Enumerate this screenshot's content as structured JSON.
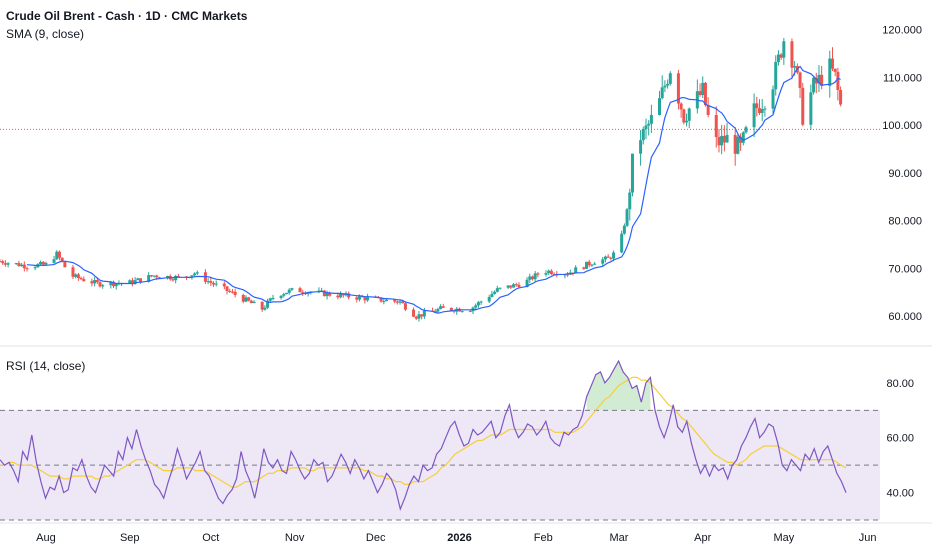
{
  "header": {
    "title": "Crude Oil Brent - Cash · 1D · CMC Markets",
    "sma_label": "SMA (9, close)",
    "rsi_label": "RSI (14, close)"
  },
  "colors": {
    "up": "#26a69a",
    "down": "#ef5350",
    "sma": "#2962ff",
    "rsi": "#7e57c2",
    "rsi_ma": "#f5cf3a",
    "rsi_band": "#ede7f6",
    "last_price_line": "#ef5350"
  },
  "chart_data": [
    {
      "type": "candlestick",
      "ylim": [
        55,
        122
      ],
      "y_ticks": [
        "120.000",
        "110.000",
        "100.000",
        "90.000",
        "80.000",
        "70.000",
        "60.000"
      ],
      "x_ticks": [
        "Aug",
        "Sep",
        "Oct",
        "Nov",
        "Dec",
        "2026",
        "Feb",
        "Mar",
        "Apr",
        "May",
        "Jun"
      ],
      "last_close": 99.1,
      "series": [
        {
          "name": "SMA (9, close)",
          "approx_close_path_by_date": [
            [
              "2025-07-15",
              71.5
            ],
            [
              "2025-07-25",
              70.5
            ],
            [
              "2025-08-01",
              70.8
            ],
            [
              "2025-08-05",
              73.0
            ],
            [
              "2025-08-10",
              68.5
            ],
            [
              "2025-08-20",
              66.8
            ],
            [
              "2025-09-01",
              67.0
            ],
            [
              "2025-09-10",
              68.5
            ],
            [
              "2025-09-20",
              68.0
            ],
            [
              "2025-09-25",
              69.0
            ],
            [
              "2025-10-01",
              67.0
            ],
            [
              "2025-10-10",
              64.5
            ],
            [
              "2025-10-20",
              61.5
            ],
            [
              "2025-10-25",
              64.5
            ],
            [
              "2025-11-01",
              65.5
            ],
            [
              "2025-11-15",
              64.5
            ],
            [
              "2025-12-01",
              63.5
            ],
            [
              "2025-12-10",
              63.0
            ],
            [
              "2025-12-16",
              60.0
            ],
            [
              "2025-12-25",
              61.5
            ],
            [
              "2026-01-05",
              61.5
            ],
            [
              "2026-01-15",
              65.5
            ],
            [
              "2026-01-25",
              67.0
            ],
            [
              "2026-02-01",
              69.5
            ],
            [
              "2026-02-10",
              69.0
            ],
            [
              "2026-02-20",
              71.5
            ],
            [
              "2026-02-25",
              72.0
            ],
            [
              "2026-03-01",
              74.0
            ],
            [
              "2026-03-04",
              82.0
            ],
            [
              "2026-03-07",
              97.0
            ],
            [
              "2026-03-10",
              98.0
            ],
            [
              "2026-03-15",
              103.0
            ],
            [
              "2026-03-20",
              112.0
            ],
            [
              "2026-03-25",
              102.0
            ],
            [
              "2026-04-01",
              107.0
            ],
            [
              "2026-04-05",
              96.0
            ],
            [
              "2026-04-10",
              97.0
            ],
            [
              "2026-04-15",
              95.0
            ],
            [
              "2026-04-20",
              103.0
            ],
            [
              "2026-04-26",
              107.0
            ],
            [
              "2026-05-01",
              118.0
            ],
            [
              "2026-05-05",
              113.0
            ],
            [
              "2026-05-08",
              102.0
            ],
            [
              "2026-05-12",
              108.0
            ],
            [
              "2026-05-15",
              110.0
            ],
            [
              "2026-05-18",
              112.0
            ],
            [
              "2026-05-20",
              110.0
            ],
            [
              "2026-05-22",
              104.0
            ],
            [
              "2026-05-24",
              99.1
            ]
          ]
        }
      ]
    },
    {
      "type": "line",
      "ylim": [
        30,
        92
      ],
      "y_ticks": [
        "80.00",
        "60.00",
        "40.00"
      ],
      "bands": [
        70,
        50,
        30
      ],
      "series": [
        {
          "name": "RSI (14, close)",
          "values": [
            52,
            50,
            51,
            48,
            44,
            55,
            52,
            61,
            51,
            44,
            38,
            42,
            41,
            46,
            40,
            41,
            49,
            48,
            52,
            46,
            42,
            40,
            45,
            50,
            48,
            46,
            55,
            52,
            60,
            56,
            63,
            57,
            52,
            48,
            43,
            41,
            38,
            44,
            49,
            56,
            51,
            45,
            48,
            51,
            55,
            48,
            46,
            42,
            38,
            36,
            39,
            41,
            45,
            55,
            48,
            44,
            38,
            46,
            56,
            51,
            49,
            52,
            48,
            47,
            55,
            52,
            48,
            45,
            47,
            52,
            50,
            51,
            44,
            46,
            50,
            54,
            51,
            47,
            52,
            49,
            45,
            48,
            44,
            40,
            43,
            47,
            45,
            41,
            34,
            38,
            43,
            46,
            44,
            50,
            48,
            49,
            54,
            56,
            60,
            64,
            66,
            61,
            57,
            58,
            63,
            61,
            62,
            64,
            66,
            60,
            62,
            68,
            72,
            64,
            60,
            62,
            65,
            64,
            61,
            63,
            66,
            60,
            58,
            57,
            62,
            61,
            63,
            64,
            68,
            75,
            79,
            83,
            84,
            80,
            82,
            85,
            88,
            84,
            82,
            78,
            79,
            73,
            80,
            82,
            70,
            64,
            60,
            65,
            72,
            64,
            62,
            66,
            58,
            52,
            47,
            50,
            46,
            50,
            48,
            49,
            45,
            50,
            52,
            57,
            60,
            64,
            67,
            60,
            62,
            65,
            64,
            58,
            50,
            48,
            52,
            50,
            48,
            54,
            52,
            56,
            51,
            55,
            57,
            52,
            47,
            44,
            40
          ]
        },
        {
          "name": "RSI-based MA",
          "values": [
            50,
            50,
            51,
            51,
            50,
            50,
            50,
            50,
            49,
            48,
            47,
            46,
            46,
            46,
            45,
            45,
            46,
            46,
            46,
            46,
            46,
            45,
            45,
            46,
            46,
            47,
            48,
            49,
            50,
            51,
            52,
            52,
            52,
            51,
            50,
            49,
            48,
            48,
            48,
            49,
            49,
            49,
            49,
            48,
            48,
            48,
            47,
            46,
            45,
            44,
            43,
            42,
            42,
            43,
            44,
            44,
            44,
            45,
            46,
            47,
            47,
            48,
            48,
            48,
            49,
            49,
            49,
            49,
            48,
            48,
            49,
            49,
            49,
            49,
            49,
            49,
            49,
            49,
            49,
            49,
            48,
            48,
            47,
            46,
            46,
            45,
            45,
            44,
            44,
            43,
            43,
            44,
            44,
            44,
            45,
            46,
            47,
            49,
            50,
            52,
            54,
            55,
            56,
            57,
            58,
            59,
            59,
            60,
            61,
            61,
            61,
            62,
            63,
            63,
            63,
            63,
            63,
            63,
            63,
            63,
            63,
            63,
            62,
            62,
            62,
            62,
            62,
            63,
            64,
            66,
            68,
            70,
            72,
            74,
            75,
            77,
            79,
            80,
            81,
            82,
            82,
            81,
            81,
            80,
            78,
            76,
            74,
            72,
            71,
            69,
            67,
            66,
            64,
            62,
            60,
            58,
            56,
            54,
            53,
            52,
            51,
            51,
            50,
            51,
            52,
            54,
            55,
            56,
            57,
            57,
            57,
            57,
            56,
            55,
            54,
            53,
            52,
            52,
            52,
            52,
            52,
            52,
            52,
            52,
            51,
            50,
            49
          ]
        }
      ]
    }
  ]
}
